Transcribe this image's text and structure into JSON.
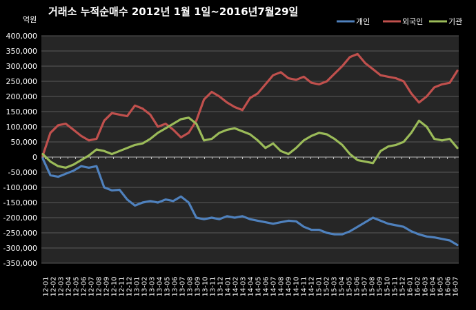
{
  "chart_data": {
    "type": "line",
    "title": "거래소  누적순매수 2012년 1월 1일~2016년7월29일",
    "unit_label": "억원",
    "xlabel": "",
    "ylabel": "",
    "ylim": [
      -350000,
      400000
    ],
    "y_ticks": [
      "400,000",
      "350,000",
      "300,000",
      "250,000",
      "200,000",
      "150,000",
      "100,000",
      "50,000",
      "0",
      "-50,000",
      "-100,000",
      "-150,000",
      "-200,000",
      "-250,000",
      "-300,000",
      "-350,000"
    ],
    "y_tick_values": [
      400000,
      350000,
      300000,
      250000,
      200000,
      150000,
      100000,
      50000,
      0,
      -50000,
      -100000,
      -150000,
      -200000,
      -250000,
      -300000,
      -350000
    ],
    "categories": [
      "12-01",
      "12-02",
      "12-03",
      "12-04",
      "12-05",
      "12-06",
      "12-07",
      "12-08",
      "12-09",
      "12-10",
      "12-11",
      "12-12",
      "13-01",
      "13-02",
      "13-03",
      "13-04",
      "13-05",
      "13-06",
      "13-07",
      "13-08",
      "13-09",
      "13-10",
      "13-11",
      "13-12",
      "14-01",
      "14-02",
      "14-03",
      "14-04",
      "14-05",
      "14-06",
      "14-07",
      "14-08",
      "14-09",
      "14-10",
      "14-11",
      "14-12",
      "15-01",
      "15-02",
      "15-03",
      "15-04",
      "15-05",
      "15-06",
      "15-07",
      "15-08",
      "15-09",
      "15-10",
      "15-11",
      "15-12",
      "16-01",
      "16-02",
      "16-03",
      "16-04",
      "16-05",
      "16-06",
      "16-07"
    ],
    "x_tick_labels": [
      "12-01",
      "12-02",
      "12-03",
      "12-04",
      "12-05",
      "12-06",
      "12-07",
      "12-08",
      "12-09",
      "12-10",
      "12-11",
      "12-12",
      "13-01",
      "13-02",
      "13-03",
      "13-04",
      "13-05",
      "13-06",
      "13-07",
      "13-08",
      "13-09",
      "13-10",
      "13-11",
      "13-12",
      "14-01",
      "14-02",
      "14-03",
      "14-04",
      "14-05",
      "14-06",
      "14-07",
      "14-08",
      "14-09",
      "14-10",
      "14-11",
      "14-12",
      "15-01",
      "15-02",
      "15-03",
      "15-04",
      "15-05",
      "15-06",
      "15-07",
      "15-08",
      "15-09",
      "15-10",
      "15-11",
      "15-12",
      "16-01",
      "16-02",
      "16-03",
      "16-04",
      "16-05",
      "16-06",
      "16-07"
    ],
    "grid": "horizontal",
    "legend_position": "top-right",
    "series": [
      {
        "name": "개인",
        "color": "#4F81BD",
        "values": [
          -5000,
          -60000,
          -65000,
          -55000,
          -45000,
          -30000,
          -35000,
          -30000,
          -100000,
          -110000,
          -108000,
          -140000,
          -160000,
          -150000,
          -145000,
          -150000,
          -140000,
          -145000,
          -130000,
          -150000,
          -200000,
          -205000,
          -200000,
          -205000,
          -195000,
          -200000,
          -195000,
          -205000,
          -210000,
          -215000,
          -220000,
          -215000,
          -210000,
          -212000,
          -230000,
          -240000,
          -240000,
          -250000,
          -255000,
          -255000,
          -245000,
          -230000,
          -215000,
          -200000,
          -210000,
          -220000,
          -225000,
          -230000,
          -245000,
          -255000,
          -262000,
          -265000,
          -270000,
          -275000,
          -290000
        ]
      },
      {
        "name": "외국인",
        "color": "#C0504D",
        "values": [
          5000,
          80000,
          105000,
          110000,
          90000,
          70000,
          55000,
          60000,
          120000,
          145000,
          140000,
          135000,
          170000,
          160000,
          140000,
          100000,
          110000,
          90000,
          65000,
          80000,
          120000,
          190000,
          215000,
          200000,
          180000,
          165000,
          155000,
          195000,
          210000,
          240000,
          270000,
          280000,
          260000,
          255000,
          265000,
          245000,
          240000,
          250000,
          275000,
          300000,
          330000,
          340000,
          310000,
          290000,
          270000,
          265000,
          260000,
          250000,
          210000,
          180000,
          200000,
          230000,
          240000,
          245000,
          285000
        ]
      },
      {
        "name": "기관",
        "color": "#9BBB59",
        "values": [
          10000,
          -15000,
          -30000,
          -35000,
          -25000,
          -10000,
          5000,
          25000,
          20000,
          10000,
          20000,
          30000,
          40000,
          45000,
          60000,
          80000,
          95000,
          110000,
          125000,
          130000,
          110000,
          55000,
          60000,
          80000,
          90000,
          95000,
          85000,
          75000,
          55000,
          30000,
          45000,
          20000,
          10000,
          30000,
          55000,
          70000,
          80000,
          75000,
          60000,
          40000,
          10000,
          -10000,
          -15000,
          -20000,
          20000,
          35000,
          40000,
          50000,
          80000,
          120000,
          100000,
          60000,
          55000,
          60000,
          30000
        ]
      }
    ]
  }
}
